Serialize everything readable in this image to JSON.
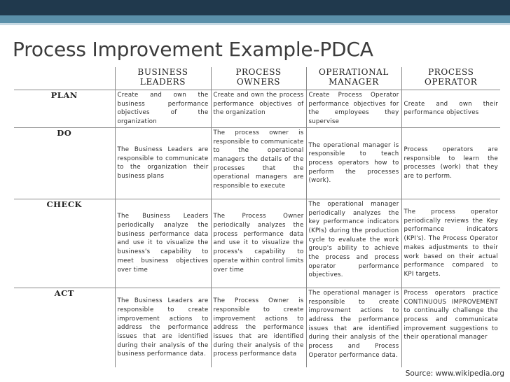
{
  "slide": {
    "title": "Process Improvement Example-PDCA",
    "source": "Source: www.wikipedia.org",
    "colors": {
      "band_dark": "#20394d",
      "band_accent": "#5a8fa9",
      "text": "#3c3c3c",
      "rule": "#8a8a8a"
    }
  },
  "table": {
    "headers": [
      [
        "BUSINESS",
        "LEADERS"
      ],
      [
        "PROCESS",
        "OWNERS"
      ],
      [
        "OPERATIONAL",
        "MANAGER"
      ],
      [
        "PROCESS",
        "OPERATOR"
      ]
    ],
    "rows": [
      {
        "phase": "PLAN",
        "cells": [
          "Create and own the business performance objectives of the organization",
          "Create and own the process performance objectives of the organization",
          "Create Process Operator performance objectives for the employees they supervise",
          "Create and own their performance objectives"
        ]
      },
      {
        "phase": "DO",
        "cells": [
          "The Business Leaders are responsible to communicate to the organization their business plans",
          "The process owner is responsible to communicate to the operational managers the details of the processes that the operational managers are responsible to execute",
          "The operational manager is responsible to teach process operators how to perform the processes (work).",
          "Process operators are responsible to learn the processes (work) that they are to perform."
        ]
      },
      {
        "phase": "CHECK",
        "cells": [
          "The Business Leaders periodically analyze the business performance data and use it to visualize the business's capability to meet business objectives over time",
          "The Process Owner periodically analyzes the process performance data and use it to visualize the process's capability to operate within control limits over time",
          "The operational manager periodically analyzes the key performance indicators (KPIs) during the production cycle to evaluate the work group's ability to achieve the process and process operator performance objectives.",
          "The process operator periodically reviews the Key performance indicators (KPI's). The Process Operator makes adjustments to their work based on their actual performance compared to KPI targets."
        ]
      },
      {
        "phase": "ACT",
        "cells": [
          "The Business Leaders are responsible to create improvement actions to address the performance issues that are identified during their analysis of the business performance data.",
          "The Process Owner is responsible to create improvement actions to address the performance issues that are identified during their analysis of the process performance data",
          "The operational manager is responsible to create improvement actions to address the performance issues that are identified during their analysis of the process and Process Operator performance data.",
          "Process operators practice CONTINUOUS IMPROVEMENT to continually challenge the process and communicate improvement suggestions to their operational manager"
        ]
      }
    ]
  }
}
